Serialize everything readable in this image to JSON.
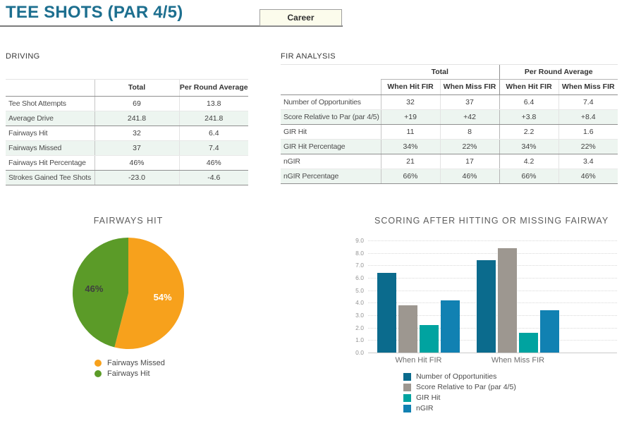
{
  "header": {
    "title": "TEE SHOTS (PAR 4/5)",
    "filter_button": "Career"
  },
  "driving": {
    "section_title": "DRIVING",
    "columns": [
      "Total",
      "Per Round Average"
    ],
    "rows": [
      {
        "label": "Tee Shot Attempts",
        "values": [
          "69",
          "13.8"
        ]
      },
      {
        "label": "Average Drive",
        "values": [
          "241.8",
          "241.8"
        ]
      },
      {
        "label": "Fairways Hit",
        "values": [
          "32",
          "6.4"
        ]
      },
      {
        "label": "Fairways Missed",
        "values": [
          "37",
          "7.4"
        ]
      },
      {
        "label": "Fairways Hit Percentage",
        "values": [
          "46%",
          "46%"
        ]
      },
      {
        "label": "Strokes Gained Tee Shots",
        "values": [
          "-23.0",
          "-4.6"
        ]
      }
    ],
    "group_breaks_after": [
      1,
      4
    ]
  },
  "fir_analysis": {
    "section_title": "FIR ANALYSIS",
    "column_groups": [
      "Total",
      "Per Round Average"
    ],
    "sub_columns": [
      "When Hit FIR",
      "When Miss FIR",
      "When Hit FIR",
      "When Miss FIR"
    ],
    "rows": [
      {
        "label": "Number of Opportunities",
        "values": [
          "32",
          "37",
          "6.4",
          "7.4"
        ]
      },
      {
        "label": "Score Relative to Par (par 4/5)",
        "values": [
          "+19",
          "+42",
          "+3.8",
          "+8.4"
        ]
      },
      {
        "label": "GIR Hit",
        "values": [
          "11",
          "8",
          "2.2",
          "1.6"
        ]
      },
      {
        "label": "GIR Hit Percentage",
        "values": [
          "34%",
          "22%",
          "34%",
          "22%"
        ]
      },
      {
        "label": "nGIR",
        "values": [
          "21",
          "17",
          "4.2",
          "3.4"
        ]
      },
      {
        "label": "nGIR Percentage",
        "values": [
          "66%",
          "46%",
          "66%",
          "46%"
        ]
      }
    ],
    "group_breaks_after": [
      1,
      3
    ]
  },
  "chart_data": [
    {
      "type": "pie",
      "title": "FAIRWAYS HIT",
      "slices": [
        {
          "label": "Fairways Missed",
          "value": 54,
          "display": "54%",
          "color": "#f7a11c",
          "label_color": "#ffffff"
        },
        {
          "label": "Fairways Hit",
          "value": 46,
          "display": "46%",
          "color": "#5b9b28",
          "label_color": "#3f3f3f"
        }
      ],
      "start_angle_deg": 0,
      "direction": "clockwise",
      "legend_position": "bottom"
    },
    {
      "type": "bar",
      "title": "SCORING AFTER HITTING OR MISSING FAIRWAY",
      "categories": [
        "When Hit FIR",
        "When Miss FIR"
      ],
      "series": [
        {
          "name": "Number of Opportunities",
          "color": "#0b6b8d",
          "values": [
            6.4,
            7.4
          ]
        },
        {
          "name": "Score Relative to Par (par 4/5)",
          "color": "#9d9790",
          "values": [
            3.8,
            8.4
          ]
        },
        {
          "name": "GIR Hit",
          "color": "#00a3a0",
          "values": [
            2.2,
            1.6
          ]
        },
        {
          "name": "nGIR",
          "color": "#1181b2",
          "values": [
            4.2,
            3.4
          ]
        }
      ],
      "ylim": [
        0,
        9
      ],
      "ytick_step": 1,
      "grid": "dotted-horizontal",
      "legend_position": "bottom"
    }
  ],
  "colors": {
    "title_teal": "#1d6f8f",
    "table_alt_row": "#edf5f0",
    "button_bg": "#fcfcec"
  }
}
